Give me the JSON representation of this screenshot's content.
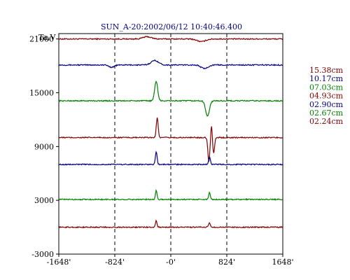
{
  "chart_data": {
    "type": "line",
    "title": "SUN_A-20:2002/06/12 10:40:46.400",
    "ylabel": "Ta,V",
    "xlabel": "",
    "xlim": [
      -1648,
      1648
    ],
    "ylim": [
      -3000,
      21600
    ],
    "x_ticks": [
      {
        "value": -1648,
        "label": "-1648'"
      },
      {
        "value": -824,
        "label": "-824'"
      },
      {
        "value": 0,
        "label": "-0'"
      },
      {
        "value": 824,
        "label": "824'"
      },
      {
        "value": 1648,
        "label": "1648'"
      }
    ],
    "y_ticks": [
      {
        "value": 21000,
        "label": "21000"
      },
      {
        "value": 15000,
        "label": "15000"
      },
      {
        "value": 9000,
        "label": "9000"
      },
      {
        "value": 3000,
        "label": "3000"
      },
      {
        "value": -3000,
        "label": "-3000"
      }
    ],
    "reference_lines_x": [
      -824,
      0,
      824
    ],
    "grid": false,
    "legend_position": "right",
    "series": [
      {
        "name": "15.38cm",
        "color": "#800000",
        "baseline": 21000,
        "features": [
          {
            "type": "bump",
            "center": -350,
            "width": 60,
            "amp": 250
          },
          {
            "type": "dip",
            "center": 450,
            "width": 60,
            "amp": -300
          }
        ]
      },
      {
        "name": "10.17cm",
        "color": "#000080",
        "baseline": 18100,
        "features": [
          {
            "type": "dip",
            "center": -870,
            "width": 40,
            "amp": -250
          },
          {
            "type": "bump",
            "center": -235,
            "width": 55,
            "amp": 500
          },
          {
            "type": "dip",
            "center": 495,
            "width": 50,
            "amp": -400
          }
        ]
      },
      {
        "name": "07.03cm",
        "color": "#008000",
        "baseline": 14100,
        "features": [
          {
            "type": "bump",
            "center": -215,
            "width": 22,
            "amp": 2200
          },
          {
            "type": "dip",
            "center": 540,
            "width": 28,
            "amp": -1700
          }
        ]
      },
      {
        "name": "04.93cm",
        "color": "#800000",
        "baseline": 10000,
        "features": [
          {
            "type": "bump",
            "center": -200,
            "width": 14,
            "amp": 2200
          },
          {
            "type": "dip",
            "center": 560,
            "width": 14,
            "amp": -2700
          },
          {
            "type": "bump",
            "center": 600,
            "width": 10,
            "amp": 1500
          },
          {
            "type": "dip",
            "center": 630,
            "width": 14,
            "amp": -1700
          }
        ]
      },
      {
        "name": "02.90cm",
        "color": "#000080",
        "baseline": 7000,
        "features": [
          {
            "type": "bump",
            "center": -215,
            "width": 13,
            "amp": 1400
          },
          {
            "type": "bump",
            "center": 570,
            "width": 12,
            "amp": 900
          }
        ]
      },
      {
        "name": "02.67cm",
        "color": "#008000",
        "baseline": 3100,
        "features": [
          {
            "type": "bump",
            "center": -215,
            "width": 12,
            "amp": 1000
          },
          {
            "type": "bump",
            "center": 570,
            "width": 12,
            "amp": 800
          }
        ]
      },
      {
        "name": "02.24cm",
        "color": "#800000",
        "baseline": 0,
        "features": [
          {
            "type": "bump",
            "center": -215,
            "width": 12,
            "amp": 700
          },
          {
            "type": "bump",
            "center": 570,
            "width": 12,
            "amp": 500
          }
        ]
      }
    ]
  }
}
